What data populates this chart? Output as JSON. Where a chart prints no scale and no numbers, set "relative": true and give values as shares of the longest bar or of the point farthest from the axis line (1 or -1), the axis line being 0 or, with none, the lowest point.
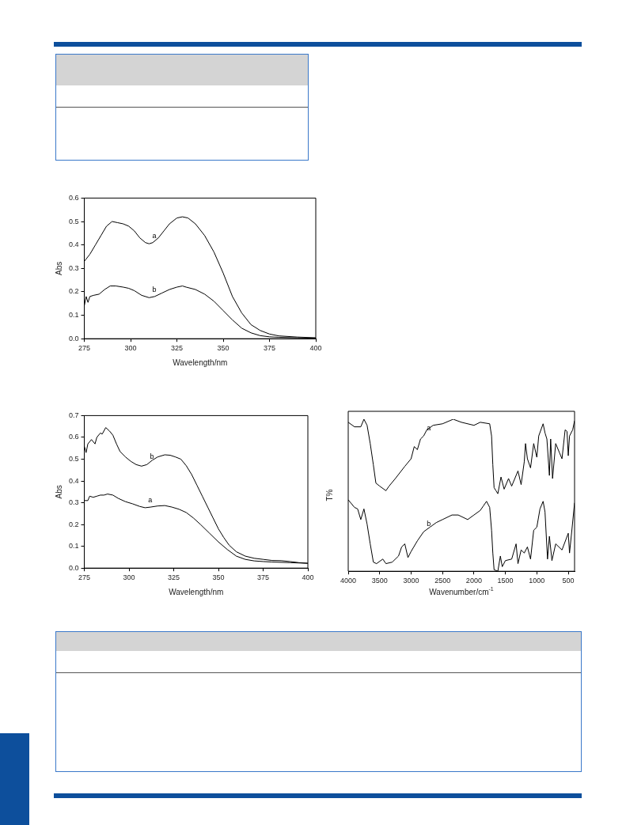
{
  "chart_data": [
    {
      "type": "line",
      "xlabel": "Wavelength/nm",
      "ylabel": "Abs",
      "xlim": [
        275,
        400
      ],
      "xticks": [
        275,
        300,
        325,
        350,
        375,
        400
      ],
      "ylim": [
        0,
        0.6
      ],
      "yticks": [
        {
          "value": 0,
          "label": "0.0"
        },
        0.1,
        0.2,
        0.3,
        0.4,
        0.5,
        0.6
      ],
      "series": [
        {
          "name": "a",
          "color": "#000000",
          "x": [
            275,
            278,
            281,
            284,
            287,
            290,
            293,
            296,
            299,
            302,
            305,
            308,
            310,
            312,
            315,
            318,
            321,
            325,
            328,
            331,
            335,
            340,
            345,
            350,
            355,
            360,
            365,
            370,
            375,
            380,
            390,
            400
          ],
          "values": [
            0.33,
            0.36,
            0.4,
            0.44,
            0.48,
            0.5,
            0.495,
            0.49,
            0.48,
            0.46,
            0.43,
            0.41,
            0.405,
            0.41,
            0.43,
            0.46,
            0.49,
            0.515,
            0.52,
            0.515,
            0.49,
            0.44,
            0.37,
            0.28,
            0.18,
            0.11,
            0.06,
            0.035,
            0.02,
            0.012,
            0.007,
            0.004
          ]
        },
        {
          "name": "b",
          "color": "#000000",
          "x": [
            275,
            276,
            277,
            278,
            280,
            283,
            286,
            289,
            292,
            296,
            299,
            302,
            306,
            310,
            313,
            317,
            321,
            325,
            328,
            330,
            335,
            340,
            345,
            350,
            355,
            360,
            365,
            370,
            375,
            380,
            390,
            400
          ],
          "values": [
            0.14,
            0.18,
            0.155,
            0.18,
            0.185,
            0.19,
            0.21,
            0.225,
            0.225,
            0.22,
            0.215,
            0.205,
            0.185,
            0.175,
            0.18,
            0.195,
            0.21,
            0.22,
            0.225,
            0.22,
            0.21,
            0.19,
            0.16,
            0.12,
            0.08,
            0.045,
            0.025,
            0.013,
            0.008,
            0.006,
            0.004,
            0.002
          ]
        }
      ]
    },
    {
      "type": "line",
      "xlabel": "Wavelength/nm",
      "ylabel": "Abs",
      "xlim": [
        275,
        400
      ],
      "xticks": [
        275,
        300,
        325,
        350,
        375,
        400
      ],
      "ylim": [
        0,
        0.7
      ],
      "yticks": [
        {
          "value": 0,
          "label": "0.0"
        },
        0.1,
        0.2,
        0.3,
        0.4,
        0.5,
        0.6,
        0.7
      ],
      "series": [
        {
          "name": "b",
          "color": "#000000",
          "x": [
            275,
            276,
            277,
            279,
            281,
            282,
            284,
            285,
            287,
            289,
            291,
            293,
            295,
            298,
            301,
            304,
            307,
            310,
            313,
            316,
            320,
            323,
            326,
            329,
            332,
            335,
            338,
            341,
            344,
            347,
            350,
            353,
            356,
            360,
            365,
            370,
            375,
            380,
            385,
            390,
            395,
            400
          ],
          "values": [
            0.56,
            0.53,
            0.57,
            0.59,
            0.57,
            0.6,
            0.62,
            0.615,
            0.645,
            0.63,
            0.61,
            0.57,
            0.535,
            0.51,
            0.49,
            0.475,
            0.468,
            0.475,
            0.495,
            0.51,
            0.52,
            0.518,
            0.51,
            0.5,
            0.47,
            0.43,
            0.38,
            0.33,
            0.28,
            0.23,
            0.18,
            0.14,
            0.105,
            0.075,
            0.055,
            0.045,
            0.04,
            0.035,
            0.034,
            0.03,
            0.025,
            0.022
          ]
        },
        {
          "name": "a",
          "color": "#000000",
          "x": [
            275,
            277,
            278,
            280,
            282,
            284,
            286,
            288,
            291,
            294,
            298,
            302,
            306,
            309,
            312,
            316,
            320,
            324,
            328,
            332,
            336,
            340,
            345,
            350,
            355,
            360,
            365,
            370,
            375,
            380,
            390,
            400
          ],
          "values": [
            0.31,
            0.31,
            0.33,
            0.325,
            0.33,
            0.335,
            0.335,
            0.34,
            0.335,
            0.32,
            0.305,
            0.295,
            0.283,
            0.277,
            0.28,
            0.285,
            0.287,
            0.28,
            0.27,
            0.255,
            0.23,
            0.2,
            0.16,
            0.12,
            0.085,
            0.055,
            0.04,
            0.033,
            0.03,
            0.028,
            0.025,
            0.022
          ]
        }
      ]
    },
    {
      "type": "line",
      "xlabel": "Wavenumber/cm$^{-1}$",
      "ylabel": "T%",
      "relative": true,
      "tick_labels": "x",
      "xlim": [
        4000,
        400
      ],
      "xticks": [
        4000,
        3500,
        3000,
        2500,
        2000,
        1500,
        1000,
        500
      ],
      "series": [
        {
          "name": "a",
          "color": "#000000",
          "x": [
            4000,
            3900,
            3800,
            3750,
            3700,
            3650,
            3600,
            3560,
            3500,
            3400,
            3350,
            3250,
            3100,
            3000,
            2950,
            2900,
            2850,
            2800,
            2750,
            2650,
            2500,
            2330,
            2200,
            2000,
            1900,
            1750,
            1720,
            1700,
            1680,
            1650,
            1620,
            1570,
            1520,
            1450,
            1400,
            1300,
            1250,
            1200,
            1180,
            1150,
            1100,
            1050,
            1000,
            970,
            900,
            870,
            840,
            800,
            780,
            750,
            700,
            640,
            600,
            550,
            520,
            500,
            480,
            430,
            400
          ],
          "values": [
            0.98,
            0.95,
            0.95,
            1.0,
            0.96,
            0.84,
            0.7,
            0.58,
            0.56,
            0.53,
            0.56,
            0.61,
            0.69,
            0.74,
            0.82,
            0.8,
            0.87,
            0.89,
            0.93,
            0.96,
            0.97,
            1.0,
            0.98,
            0.96,
            0.98,
            0.97,
            0.89,
            0.7,
            0.55,
            0.53,
            0.51,
            0.62,
            0.54,
            0.61,
            0.56,
            0.66,
            0.57,
            0.72,
            0.84,
            0.74,
            0.68,
            0.84,
            0.75,
            0.89,
            0.97,
            0.91,
            0.87,
            0.63,
            0.87,
            0.61,
            0.84,
            0.78,
            0.74,
            0.93,
            0.92,
            0.76,
            0.89,
            0.93,
            0.99
          ]
        },
        {
          "name": "b",
          "color": "#000000",
          "x": [
            4000,
            3900,
            3850,
            3800,
            3750,
            3700,
            3650,
            3600,
            3550,
            3450,
            3400,
            3300,
            3200,
            3150,
            3100,
            3050,
            3000,
            2900,
            2800,
            2700,
            2600,
            2500,
            2350,
            2250,
            2100,
            2000,
            1900,
            1850,
            1800,
            1750,
            1720,
            1700,
            1680,
            1620,
            1580,
            1550,
            1500,
            1400,
            1330,
            1300,
            1250,
            1200,
            1150,
            1100,
            1050,
            1000,
            950,
            900,
            870,
            830,
            800,
            760,
            700,
            600,
            500,
            480,
            450,
            400
          ],
          "values": [
            0.47,
            0.42,
            0.41,
            0.34,
            0.41,
            0.31,
            0.18,
            0.06,
            0.05,
            0.08,
            0.05,
            0.06,
            0.1,
            0.16,
            0.18,
            0.09,
            0.13,
            0.2,
            0.26,
            0.29,
            0.32,
            0.34,
            0.37,
            0.37,
            0.34,
            0.37,
            0.4,
            0.43,
            0.46,
            0.42,
            0.27,
            0.12,
            0.01,
            0,
            0.1,
            0.03,
            0.07,
            0.08,
            0.18,
            0.05,
            0.14,
            0.12,
            0.16,
            0.08,
            0.27,
            0.29,
            0.41,
            0.46,
            0.39,
            0.08,
            0.23,
            0.07,
            0.18,
            0.14,
            0.25,
            0.12,
            0.24,
            0.45
          ]
        }
      ]
    }
  ]
}
